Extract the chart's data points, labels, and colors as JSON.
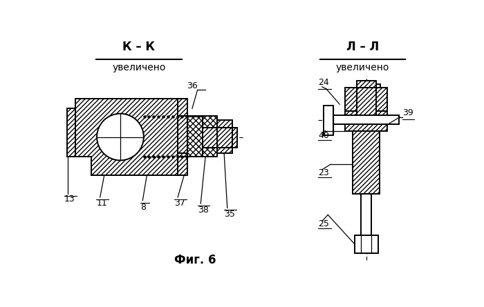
{
  "bg_color": "#ffffff",
  "line_color": "#000000",
  "title_kk": "К – К",
  "subtitle_kk": "увеличено",
  "title_ll": "Л – Л",
  "subtitle_ll": "увеличено",
  "bottom_label": "Фиг. 6"
}
